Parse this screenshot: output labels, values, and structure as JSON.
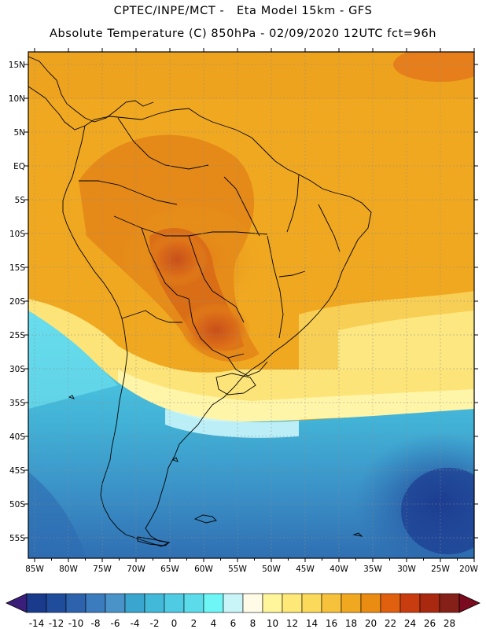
{
  "title": {
    "line1": "CPTEC/INPE/MCT -   Eta Model 15km - GFS",
    "line2": "Absolute Temperature (C) 850hPa - 02/09/2020 12UTC fct=96h"
  },
  "map": {
    "lat_labels": [
      "15N",
      "10N",
      "5N",
      "EQ",
      "5S",
      "10S",
      "15S",
      "20S",
      "25S",
      "30S",
      "35S",
      "40S",
      "45S",
      "50S",
      "55S"
    ],
    "lon_labels": [
      "85W",
      "80W",
      "75W",
      "70W",
      "65W",
      "60W",
      "55W",
      "50W",
      "45W",
      "40W",
      "35W",
      "30W",
      "25W",
      "20W"
    ],
    "gridlines": "dotted",
    "region": "South America"
  },
  "colorbar": {
    "labels": [
      "-14",
      "-12",
      "-10",
      "-8",
      "-6",
      "-4",
      "-2",
      "0",
      "2",
      "4",
      "6",
      "8",
      "10",
      "12",
      "14",
      "16",
      "18",
      "20",
      "22",
      "24",
      "26",
      "28"
    ],
    "colors": [
      "#1a3a8c",
      "#1f4d9c",
      "#2c63ac",
      "#3a7cbd",
      "#4a93c9",
      "#3aa6cf",
      "#42b9d8",
      "#4fcbe3",
      "#5cdcea",
      "#6ef5f5",
      "#c9f5f9",
      "#fffbe6",
      "#fff59a",
      "#fde878",
      "#fbd95a",
      "#f7c23b",
      "#f0a820",
      "#ea8c12",
      "#e06010",
      "#c83c10",
      "#a82810",
      "#842018"
    ],
    "left_extend_color": "#3a1e7a",
    "right_extend_color": "#7a0a1e"
  }
}
